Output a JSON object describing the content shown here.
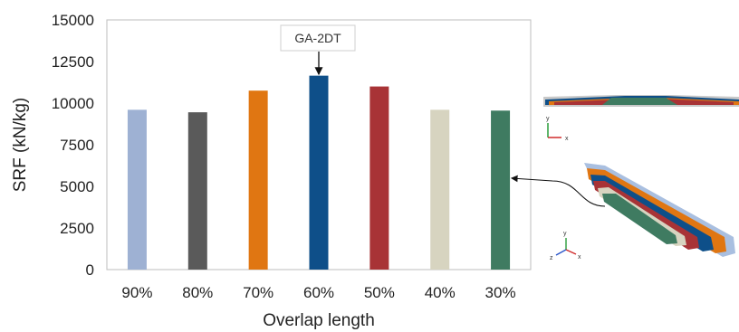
{
  "chart_data": {
    "type": "bar",
    "categories": [
      "90%",
      "80%",
      "70%",
      "60%",
      "50%",
      "40%",
      "30%"
    ],
    "values": [
      9600,
      9450,
      10750,
      11650,
      11000,
      9600,
      9550
    ],
    "colors": [
      "#9eb1d3",
      "#5a5a5a",
      "#e07612",
      "#0e4f89",
      "#a83336",
      "#d7d4c0",
      "#3f7b61"
    ],
    "ylim": [
      0,
      15000
    ],
    "yticks": [
      0,
      2500,
      5000,
      7500,
      10000,
      12500,
      15000
    ],
    "ylabel": "SRF (kN/kg)",
    "xlabel": "Overlap length",
    "grid": false,
    "annotations": [
      {
        "text": "GA-2DT",
        "category": "60%"
      }
    ]
  },
  "insets": {
    "top_axes": {
      "y": "y",
      "x": "x"
    },
    "bottom_axes": {
      "y": "y",
      "z": "z",
      "x": "x"
    }
  }
}
